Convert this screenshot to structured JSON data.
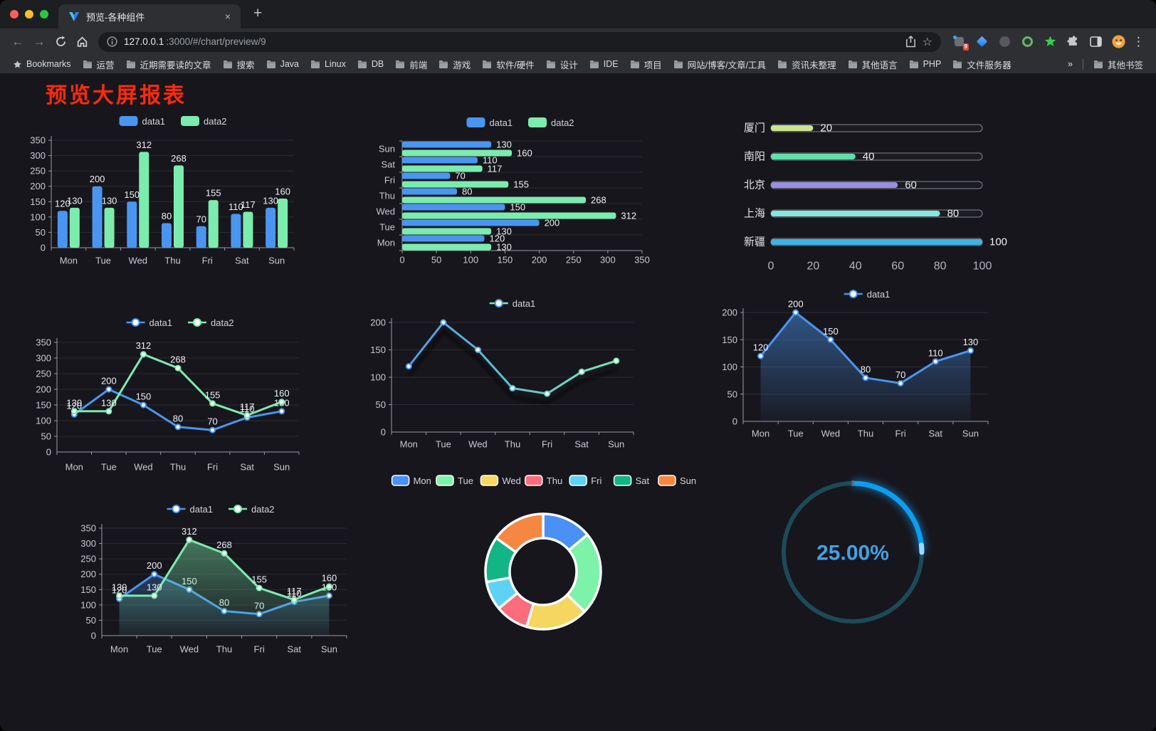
{
  "browser": {
    "tab_title": "预览-各种组件",
    "url_host": "127.0.0.1",
    "url_path": ":3000/#/chart/preview/9",
    "extension_badge": "9",
    "icons": {
      "back": "←",
      "forward": "→",
      "new_tab": "+",
      "close_tab": "×",
      "menu": "⋮",
      "bookmark_star": "☆"
    },
    "bookmarks": [
      {
        "label": "Bookmarks",
        "icon": "star"
      },
      {
        "label": "运营",
        "icon": "folder"
      },
      {
        "label": "近期需要读的文章",
        "icon": "folder"
      },
      {
        "label": "搜索",
        "icon": "folder"
      },
      {
        "label": "Java",
        "icon": "folder"
      },
      {
        "label": "Linux",
        "icon": "folder"
      },
      {
        "label": "DB",
        "icon": "folder"
      },
      {
        "label": "前端",
        "icon": "folder"
      },
      {
        "label": "游戏",
        "icon": "folder"
      },
      {
        "label": "软件/硬件",
        "icon": "folder"
      },
      {
        "label": "设计",
        "icon": "folder"
      },
      {
        "label": "IDE",
        "icon": "folder"
      },
      {
        "label": "项目",
        "icon": "folder"
      },
      {
        "label": "网站/博客/文章/工具",
        "icon": "folder"
      },
      {
        "label": "资讯未整理",
        "icon": "folder"
      },
      {
        "label": "其他语言",
        "icon": "folder"
      },
      {
        "label": "PHP",
        "icon": "folder"
      },
      {
        "label": "文件服务器",
        "icon": "folder"
      },
      {
        "label": "»",
        "icon": "chevron",
        "push_right": true
      },
      {
        "label": "其他书签",
        "icon": "folder",
        "separator_before": true
      }
    ]
  },
  "page": {
    "title": "预览大屏报表",
    "title_color": "#fd2b0d",
    "background": "#17161c"
  },
  "chart_data": [
    {
      "id": "c1",
      "type": "bar",
      "legend_position": "top",
      "labels": true,
      "categories": [
        "Mon",
        "Tue",
        "Wed",
        "Thu",
        "Fri",
        "Sat",
        "Sun"
      ],
      "series": [
        {
          "name": "data1",
          "color": "#4a95f0",
          "values": [
            120,
            200,
            150,
            80,
            70,
            110,
            130
          ]
        },
        {
          "name": "data2",
          "color": "#7cecae",
          "values": [
            130,
            130,
            312,
            268,
            155,
            117,
            160
          ]
        }
      ],
      "ylim": [
        0,
        350
      ],
      "ytick_step": 50
    },
    {
      "id": "c2",
      "type": "bar-horizontal",
      "legend_position": "top",
      "labels": true,
      "categories": [
        "Mon",
        "Tue",
        "Wed",
        "Thu",
        "Fri",
        "Sat",
        "Sun"
      ],
      "category_axis_order": "Sun-on-top",
      "series": [
        {
          "name": "data1",
          "color": "#4a95f0",
          "values": [
            120,
            200,
            150,
            80,
            70,
            110,
            130
          ]
        },
        {
          "name": "data2",
          "color": "#7cecae",
          "values": [
            130,
            130,
            312,
            268,
            155,
            117,
            160
          ]
        }
      ],
      "xlim": [
        0,
        350
      ],
      "xtick_step": 50
    },
    {
      "id": "c3",
      "type": "progress-bars",
      "items": [
        {
          "label": "厦门",
          "value": 20,
          "color": "#c9e791"
        },
        {
          "label": "南阳",
          "value": 40,
          "color": "#5fe0a8"
        },
        {
          "label": "北京",
          "value": 60,
          "color": "#988fe3"
        },
        {
          "label": "上海",
          "value": 80,
          "color": "#87e6de"
        },
        {
          "label": "新疆",
          "value": 100,
          "color": "#3cb4e6"
        }
      ],
      "xlim": [
        0,
        100
      ],
      "xticks": [
        0,
        20,
        40,
        60,
        80,
        100
      ]
    },
    {
      "id": "c4",
      "type": "line",
      "legend_position": "top",
      "labels": true,
      "categories": [
        "Mon",
        "Tue",
        "Wed",
        "Thu",
        "Fri",
        "Sat",
        "Sun"
      ],
      "series": [
        {
          "name": "data1",
          "color": "#4a95f0",
          "values": [
            120,
            200,
            150,
            80,
            70,
            110,
            130
          ]
        },
        {
          "name": "data2",
          "color": "#7cecae",
          "values": [
            130,
            130,
            312,
            268,
            155,
            117,
            160
          ]
        }
      ],
      "ylim": [
        0,
        350
      ],
      "ytick_step": 50
    },
    {
      "id": "c5",
      "type": "line",
      "legend_position": "top",
      "labels": false,
      "shadow": true,
      "categories": [
        "Mon",
        "Tue",
        "Wed",
        "Thu",
        "Fri",
        "Sat",
        "Sun"
      ],
      "series": [
        {
          "name": "data1",
          "gradient": [
            "#4a95f0",
            "#7cecae"
          ],
          "values": [
            120,
            200,
            150,
            80,
            70,
            110,
            130
          ]
        }
      ],
      "ylim": [
        0,
        200
      ],
      "ytick_step": 50
    },
    {
      "id": "c6",
      "type": "area",
      "legend_position": "top",
      "labels": true,
      "categories": [
        "Mon",
        "Tue",
        "Wed",
        "Thu",
        "Fri",
        "Sat",
        "Sun"
      ],
      "series": [
        {
          "name": "data1",
          "color": "#4a95f0",
          "area": true,
          "values": [
            120,
            200,
            150,
            80,
            70,
            110,
            130
          ]
        }
      ],
      "ylim": [
        0,
        200
      ],
      "ytick_step": 50
    },
    {
      "id": "c7",
      "type": "area",
      "legend_position": "top",
      "labels": true,
      "categories": [
        "Mon",
        "Tue",
        "Wed",
        "Thu",
        "Fri",
        "Sat",
        "Sun"
      ],
      "series": [
        {
          "name": "data1",
          "color": "#4a95f0",
          "area": true,
          "values": [
            120,
            200,
            150,
            80,
            70,
            110,
            130
          ]
        },
        {
          "name": "data2",
          "color": "#7cecae",
          "area": true,
          "values": [
            130,
            130,
            312,
            268,
            155,
            117,
            160
          ]
        }
      ],
      "ylim": [
        0,
        350
      ],
      "ytick_step": 50
    },
    {
      "id": "c8",
      "type": "pie",
      "legend_position": "top",
      "border_color": "#ffffff",
      "inner_radius_ratio": 0.58,
      "items": [
        {
          "name": "Mon",
          "value": 120,
          "color": "#4a90f5"
        },
        {
          "name": "Tue",
          "value": 200,
          "color": "#7df2a9"
        },
        {
          "name": "Wed",
          "value": 150,
          "color": "#f5d75f"
        },
        {
          "name": "Thu",
          "value": 80,
          "color": "#fb6d7c"
        },
        {
          "name": "Fri",
          "value": 70,
          "color": "#5ed2f5"
        },
        {
          "name": "Sat",
          "value": 110,
          "color": "#12b585"
        },
        {
          "name": "Sun",
          "value": 130,
          "color": "#f58742"
        }
      ]
    },
    {
      "id": "c9",
      "type": "gauge",
      "value": 25,
      "min": 0,
      "max": 100,
      "display": "25.00%",
      "progress_color": "#0b9ef0",
      "track_color": "#1c4a58",
      "text_color": "#42a0e3"
    }
  ]
}
